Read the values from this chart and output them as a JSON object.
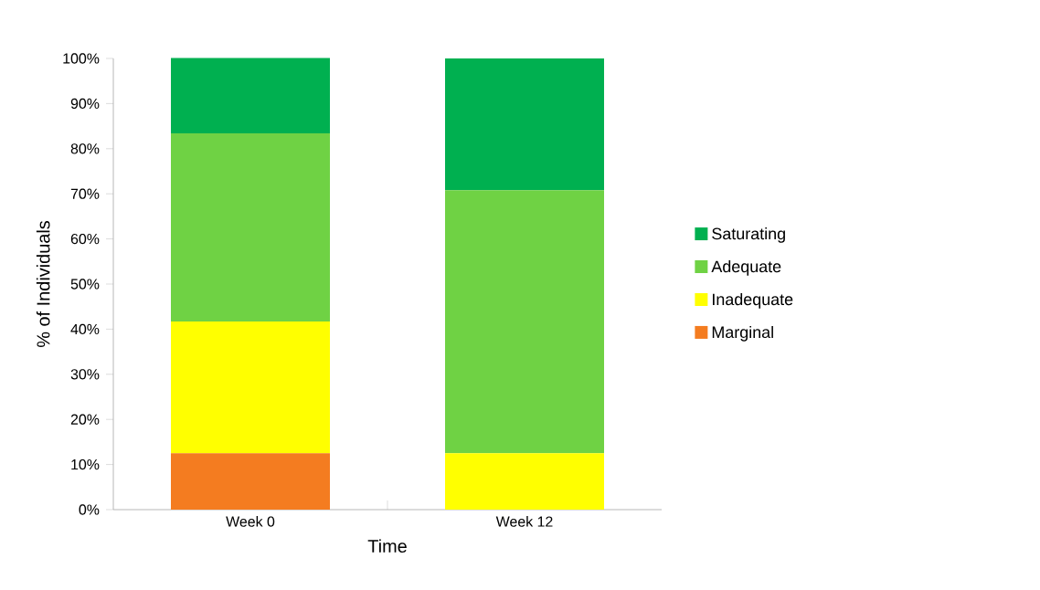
{
  "chart_data": {
    "type": "bar",
    "stacked": true,
    "xlabel": "Time",
    "ylabel": "% of Individuals",
    "categories": [
      "Week 0",
      "Week 12"
    ],
    "series": [
      {
        "name": "Marginal",
        "color": "#f47c20",
        "values": [
          12.5,
          0
        ]
      },
      {
        "name": "Inadequate",
        "color": "#ffff00",
        "values": [
          29.2,
          12.5
        ]
      },
      {
        "name": "Adequate",
        "color": "#6fd244",
        "values": [
          41.7,
          58.3
        ]
      },
      {
        "name": "Saturating",
        "color": "#00b050",
        "values": [
          16.7,
          29.2
        ]
      }
    ],
    "ylim": [
      0,
      100
    ],
    "yticks": [
      {
        "value": 0,
        "label": "0%"
      },
      {
        "value": 10,
        "label": "10%"
      },
      {
        "value": 20,
        "label": "20%"
      },
      {
        "value": 30,
        "label": "30%"
      },
      {
        "value": 40,
        "label": "40%"
      },
      {
        "value": 50,
        "label": "50%"
      },
      {
        "value": 60,
        "label": "60%"
      },
      {
        "value": 70,
        "label": "70%"
      },
      {
        "value": 80,
        "label": "80%"
      },
      {
        "value": 90,
        "label": "90%"
      },
      {
        "value": 100,
        "label": "100%"
      }
    ],
    "legend": "right",
    "grid": false
  }
}
